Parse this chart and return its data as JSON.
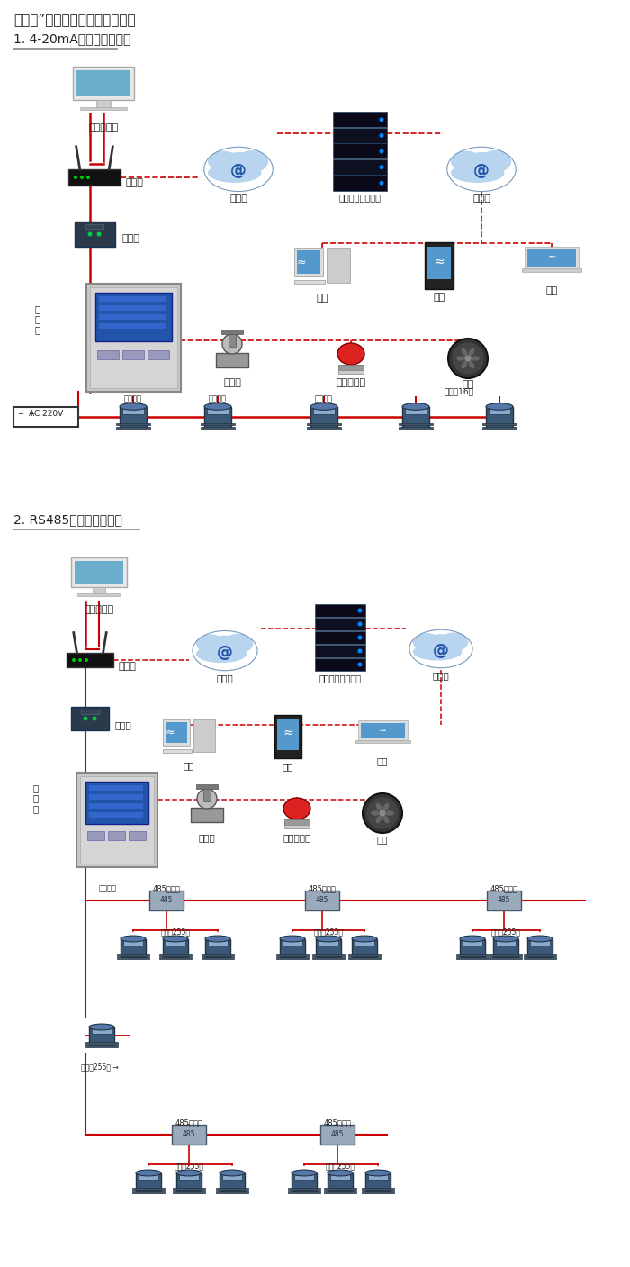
{
  "title1": "机气猫”系列带显示固定式检测仪",
  "section1": "1. 4-20mA信号连接系统图",
  "section2": "2. RS485信号连接系统图",
  "bg_color": "#ffffff",
  "line_color_red": "#cc0000",
  "text_color": "#222222"
}
